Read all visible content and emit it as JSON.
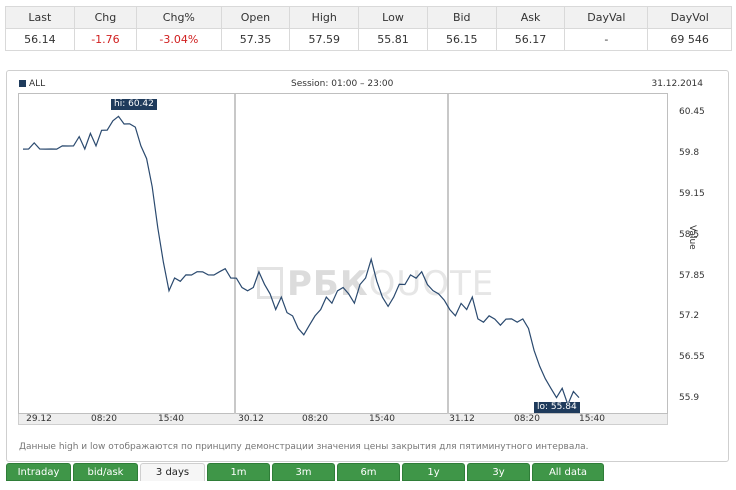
{
  "quote": {
    "headers": [
      "Last",
      "Chg",
      "Chg%",
      "Open",
      "High",
      "Low",
      "Bid",
      "Ask",
      "DayVal",
      "DayVol"
    ],
    "values": [
      "56.14",
      "-1.76",
      "-3.04%",
      "57.35",
      "57.59",
      "55.81",
      "56.15",
      "56.17",
      "-",
      "69 546"
    ]
  },
  "chart": {
    "legend": "ALL",
    "session": "Session: 01:00 – 23:00",
    "date": "31.12.2014",
    "watermark_a": "РБК",
    "watermark_b": "QUOTE",
    "ylabel": "Value",
    "hi_label": "hi: 60.42",
    "lo_label": "lo: 55.84",
    "note": "Данные high и low отображаются по принципу демонстрации значения цены закрытия для пятиминутного интервала."
  },
  "tabs": [
    "Intraday",
    "bid/ask",
    "3 days",
    "1m",
    "3m",
    "6m",
    "1y",
    "3y",
    "All data"
  ],
  "active_tab": "3 days",
  "chart_data": {
    "type": "line",
    "title": "",
    "ylabel": "Value",
    "ylim": [
      55.65,
      60.75
    ],
    "yticks": [
      60.45,
      59.8,
      59.15,
      58.5,
      57.85,
      57.2,
      56.55,
      55.9
    ],
    "xticks": [
      "29.12",
      "08:20",
      "15:40",
      "30.12",
      "08:20",
      "15:40",
      "31.12",
      "08:20",
      "15:40"
    ],
    "series": [
      {
        "values": [
          59.85,
          59.9,
          59.95,
          59.9,
          59.85,
          59.9,
          59.85,
          59.95,
          59.9,
          59.95,
          60.05,
          59.9,
          60.1,
          59.95,
          60.15,
          60.2,
          60.3,
          60.42,
          60.25,
          60.3,
          60.2,
          59.95,
          59.7,
          59.3,
          58.6,
          58.1,
          57.6,
          57.85,
          57.75,
          57.9,
          57.85,
          57.95,
          57.9,
          57.9,
          57.85,
          57.95,
          57.95,
          57.85,
          57.8,
          57.7,
          57.6,
          57.7,
          57.9,
          57.75,
          57.55,
          57.35,
          57.5,
          57.3,
          57.2,
          57.05,
          56.9,
          57.1,
          57.2,
          57.35,
          57.5,
          57.45,
          57.6,
          57.7,
          57.55,
          57.45,
          57.7,
          57.85,
          58.1,
          57.8,
          57.5,
          57.4,
          57.5,
          57.75,
          57.7,
          57.9,
          57.8,
          57.95,
          57.7,
          57.65,
          57.55,
          57.5,
          57.3,
          57.25,
          57.4,
          57.35,
          57.5,
          57.2,
          57.1,
          57.25,
          57.15,
          57.1,
          57.15,
          57.2,
          57.1,
          57.2,
          57.0,
          56.7,
          56.4,
          56.25,
          56.05,
          55.95,
          56.05,
          55.84,
          56.0,
          55.95
        ]
      }
    ]
  }
}
